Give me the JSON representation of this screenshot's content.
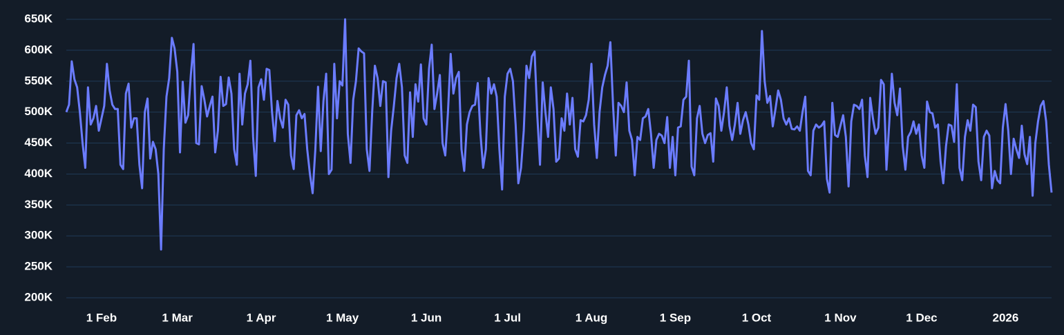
{
  "chart_data": {
    "type": "line",
    "categories": [
      "19 Jan",
      "20 Jan",
      "21 Jan",
      "22 Jan",
      "23 Jan",
      "24 Jan",
      "25 Jan",
      "26 Jan",
      "27 Jan",
      "28 Jan",
      "29 Jan",
      "30 Jan",
      "31 Jan",
      "1 Feb",
      "2 Feb",
      "3 Feb",
      "4 Feb",
      "5 Feb",
      "6 Feb",
      "7 Feb",
      "8 Feb",
      "9 Feb",
      "10 Feb",
      "11 Feb",
      "12 Feb",
      "13 Feb",
      "14 Feb",
      "15 Feb",
      "16 Feb",
      "17 Feb",
      "18 Feb",
      "19 Feb",
      "20 Feb",
      "21 Feb",
      "22 Feb",
      "23 Feb",
      "24 Feb",
      "25 Feb",
      "26 Feb",
      "27 Feb",
      "28 Feb",
      "1 Mar",
      "2 Mar",
      "3 Mar",
      "4 Mar",
      "5 Mar",
      "6 Mar",
      "7 Mar",
      "8 Mar",
      "9 Mar",
      "10 Mar",
      "11 Mar",
      "12 Mar",
      "13 Mar",
      "14 Mar",
      "15 Mar",
      "16 Mar",
      "17 Mar",
      "18 Mar",
      "19 Mar",
      "20 Mar",
      "21 Mar",
      "22 Mar",
      "23 Mar",
      "24 Mar",
      "25 Mar",
      "26 Mar",
      "27 Mar",
      "28 Mar",
      "29 Mar",
      "30 Mar",
      "31 Mar",
      "1 Apr",
      "2 Apr",
      "3 Apr",
      "4 Apr",
      "5 Apr",
      "6 Apr",
      "7 Apr",
      "8 Apr",
      "9 Apr",
      "10 Apr",
      "11 Apr",
      "12 Apr",
      "13 Apr",
      "14 Apr",
      "15 Apr",
      "16 Apr",
      "17 Apr",
      "18 Apr",
      "19 Apr",
      "20 Apr",
      "21 Apr",
      "22 Apr",
      "23 Apr",
      "24 Apr",
      "25 Apr",
      "26 Apr",
      "27 Apr",
      "28 Apr",
      "29 Apr",
      "30 Apr",
      "1 May",
      "2 May",
      "3 May",
      "4 May",
      "5 May",
      "6 May",
      "7 May",
      "8 May",
      "9 May",
      "10 May",
      "11 May",
      "12 May",
      "13 May",
      "14 May",
      "15 May",
      "16 May",
      "17 May",
      "18 May",
      "19 May",
      "20 May",
      "21 May",
      "22 May",
      "23 May",
      "24 May",
      "25 May",
      "26 May",
      "27 May",
      "28 May",
      "29 May",
      "30 May",
      "31 May",
      "1 Jun",
      "2 Jun",
      "3 Jun",
      "4 Jun",
      "5 Jun",
      "6 Jun",
      "7 Jun",
      "8 Jun",
      "9 Jun",
      "10 Jun",
      "11 Jun",
      "12 Jun",
      "13 Jun",
      "14 Jun",
      "15 Jun",
      "16 Jun",
      "17 Jun",
      "18 Jun",
      "19 Jun",
      "20 Jun",
      "21 Jun",
      "22 Jun",
      "23 Jun",
      "24 Jun",
      "25 Jun",
      "26 Jun",
      "27 Jun",
      "28 Jun",
      "29 Jun",
      "30 Jun",
      "1 Jul",
      "2 Jul",
      "3 Jul",
      "4 Jul",
      "5 Jul",
      "6 Jul",
      "7 Jul",
      "8 Jul",
      "9 Jul",
      "10 Jul",
      "11 Jul",
      "12 Jul",
      "13 Jul",
      "14 Jul",
      "15 Jul",
      "16 Jul",
      "17 Jul",
      "18 Jul",
      "19 Jul",
      "20 Jul",
      "21 Jul",
      "22 Jul",
      "23 Jul",
      "24 Jul",
      "25 Jul",
      "26 Jul",
      "27 Jul",
      "28 Jul",
      "29 Jul",
      "30 Jul",
      "31 Jul",
      "1 Aug",
      "2 Aug",
      "3 Aug",
      "4 Aug",
      "5 Aug",
      "6 Aug",
      "7 Aug",
      "8 Aug",
      "9 Aug",
      "10 Aug",
      "11 Aug",
      "12 Aug",
      "13 Aug",
      "14 Aug",
      "15 Aug",
      "16 Aug",
      "17 Aug",
      "18 Aug",
      "19 Aug",
      "20 Aug",
      "21 Aug",
      "22 Aug",
      "23 Aug",
      "24 Aug",
      "25 Aug",
      "26 Aug",
      "27 Aug",
      "28 Aug",
      "29 Aug",
      "30 Aug",
      "31 Aug",
      "1 Sep",
      "2 Sep",
      "3 Sep",
      "4 Sep",
      "5 Sep",
      "6 Sep",
      "7 Sep",
      "8 Sep",
      "9 Sep",
      "10 Sep",
      "11 Sep",
      "12 Sep",
      "13 Sep",
      "14 Sep",
      "15 Sep",
      "16 Sep",
      "17 Sep",
      "18 Sep",
      "19 Sep",
      "20 Sep",
      "21 Sep",
      "22 Sep",
      "23 Sep",
      "24 Sep",
      "25 Sep",
      "26 Sep",
      "27 Sep",
      "28 Sep",
      "29 Sep",
      "30 Sep",
      "1 Oct",
      "2 Oct",
      "3 Oct",
      "4 Oct",
      "5 Oct",
      "6 Oct",
      "7 Oct",
      "8 Oct",
      "9 Oct",
      "10 Oct",
      "11 Oct",
      "12 Oct",
      "13 Oct",
      "14 Oct",
      "15 Oct",
      "16 Oct",
      "17 Oct",
      "18 Oct",
      "19 Oct",
      "20 Oct",
      "21 Oct",
      "22 Oct",
      "23 Oct",
      "24 Oct",
      "25 Oct",
      "26 Oct",
      "27 Oct",
      "28 Oct",
      "29 Oct",
      "30 Oct",
      "31 Oct",
      "1 Nov",
      "2 Nov",
      "3 Nov",
      "4 Nov",
      "5 Nov",
      "6 Nov",
      "7 Nov",
      "8 Nov",
      "9 Nov",
      "10 Nov",
      "11 Nov",
      "12 Nov",
      "13 Nov",
      "14 Nov",
      "15 Nov",
      "16 Nov",
      "17 Nov",
      "18 Nov",
      "19 Nov",
      "20 Nov",
      "21 Nov",
      "22 Nov",
      "23 Nov",
      "24 Nov",
      "25 Nov",
      "26 Nov",
      "27 Nov",
      "28 Nov",
      "29 Nov",
      "30 Nov",
      "1 Dec",
      "2 Dec",
      "3 Dec",
      "4 Dec",
      "5 Dec",
      "6 Dec",
      "7 Dec",
      "8 Dec",
      "9 Dec",
      "10 Dec",
      "11 Dec",
      "12 Dec",
      "13 Dec",
      "14 Dec",
      "15 Dec",
      "16 Dec",
      "17 Dec",
      "18 Dec",
      "19 Dec",
      "20 Dec",
      "21 Dec",
      "22 Dec",
      "23 Dec",
      "24 Dec",
      "25 Dec",
      "26 Dec",
      "27 Dec",
      "28 Dec",
      "29 Dec",
      "30 Dec",
      "31 Dec",
      "1 Jan",
      "2 Jan",
      "3 Jan",
      "4 Jan",
      "5 Jan",
      "6 Jan",
      "7 Jan",
      "8 Jan",
      "9 Jan",
      "10 Jan",
      "11 Jan",
      "12 Jan",
      "13 Jan",
      "14 Jan",
      "15 Jan",
      "16 Jan",
      "17 Jan",
      "18 Jan"
    ],
    "series": [
      {
        "color": "#6b7cff",
        "values": [
          500000,
          512000,
          582000,
          553000,
          540000,
          500000,
          450000,
          410000,
          540000,
          480000,
          490000,
          510000,
          470000,
          490000,
          510000,
          578000,
          535000,
          512000,
          505000,
          505000,
          415000,
          408000,
          530000,
          546000,
          475000,
          490000,
          490000,
          415000,
          377000,
          500000,
          522000,
          425000,
          452000,
          440000,
          400000,
          278000,
          440000,
          525000,
          555000,
          620000,
          603000,
          565000,
          435000,
          549000,
          483000,
          495000,
          560000,
          610000,
          450000,
          448000,
          542000,
          520000,
          493000,
          510000,
          525000,
          435000,
          470000,
          557000,
          510000,
          513000,
          556000,
          530000,
          440000,
          415000,
          562000,
          480000,
          530000,
          545000,
          583000,
          460000,
          397000,
          540000,
          553000,
          520000,
          570000,
          568000,
          500000,
          453000,
          518000,
          490000,
          475000,
          520000,
          512000,
          430000,
          408000,
          495000,
          503000,
          490000,
          497000,
          440000,
          400000,
          369000,
          440000,
          541000,
          437000,
          518000,
          562000,
          400000,
          407000,
          578000,
          490000,
          550000,
          543000,
          650000,
          465000,
          418000,
          520000,
          550000,
          603000,
          598000,
          595000,
          440000,
          405000,
          500000,
          575000,
          555000,
          510000,
          550000,
          548000,
          395000,
          470000,
          510000,
          555000,
          578000,
          540000,
          430000,
          418000,
          532000,
          460000,
          545000,
          517000,
          577000,
          490000,
          480000,
          570000,
          609000,
          505000,
          530000,
          560000,
          450000,
          430000,
          500000,
          594000,
          530000,
          555000,
          565000,
          440000,
          405000,
          480000,
          500000,
          510000,
          512000,
          547000,
          465000,
          410000,
          440000,
          555000,
          530000,
          545000,
          525000,
          440000,
          375000,
          525000,
          562000,
          570000,
          550000,
          480000,
          385000,
          410000,
          470000,
          575000,
          555000,
          590000,
          598000,
          495000,
          415000,
          548000,
          500000,
          460000,
          540000,
          505000,
          420000,
          425000,
          490000,
          470000,
          530000,
          480000,
          523000,
          440000,
          428000,
          487000,
          485000,
          495000,
          520000,
          578000,
          480000,
          426000,
          500000,
          540000,
          560000,
          575000,
          613000,
          510000,
          430000,
          515000,
          510000,
          500000,
          548000,
          470000,
          455000,
          398000,
          460000,
          455000,
          490000,
          493000,
          505000,
          465000,
          410000,
          455000,
          465000,
          462000,
          450000,
          492000,
          410000,
          460000,
          398000,
          475000,
          477000,
          520000,
          525000,
          583000,
          412000,
          398000,
          490000,
          510000,
          465000,
          450000,
          463000,
          466000,
          420000,
          522000,
          510000,
          470000,
          500000,
          540000,
          478000,
          455000,
          480000,
          515000,
          465000,
          487000,
          500000,
          480000,
          450000,
          440000,
          527000,
          520000,
          631000,
          550000,
          515000,
          526000,
          477000,
          505000,
          535000,
          520000,
          490000,
          480000,
          490000,
          473000,
          472000,
          477000,
          470000,
          500000,
          525000,
          405000,
          398000,
          470000,
          480000,
          475000,
          478000,
          485000,
          392000,
          370000,
          515000,
          463000,
          460000,
          478000,
          495000,
          460000,
          380000,
          485000,
          512000,
          510000,
          505000,
          520000,
          430000,
          395000,
          523000,
          490000,
          465000,
          475000,
          552000,
          545000,
          407000,
          480000,
          562000,
          515000,
          495000,
          538000,
          445000,
          407000,
          460000,
          468000,
          485000,
          465000,
          480000,
          430000,
          410000,
          517000,
          500000,
          498000,
          475000,
          480000,
          420000,
          385000,
          445000,
          480000,
          478000,
          452000,
          545000,
          410000,
          390000,
          460000,
          487000,
          470000,
          512000,
          508000,
          420000,
          390000,
          460000,
          470000,
          462000,
          377000,
          405000,
          390000,
          385000,
          475000,
          513000,
          470000,
          400000,
          457000,
          440000,
          426000,
          478000,
          432000,
          416000,
          460000,
          365000,
          450000,
          485000,
          510000,
          518000,
          485000,
          415000,
          370000
        ]
      }
    ],
    "ylim": [
      200000,
      650000
    ],
    "yticks": [
      {
        "value": 200000,
        "label": "200K"
      },
      {
        "value": 250000,
        "label": "250K"
      },
      {
        "value": 300000,
        "label": "300K"
      },
      {
        "value": 350000,
        "label": "350K"
      },
      {
        "value": 400000,
        "label": "400K"
      },
      {
        "value": 450000,
        "label": "450K"
      },
      {
        "value": 500000,
        "label": "500K"
      },
      {
        "value": 550000,
        "label": "550K"
      },
      {
        "value": 600000,
        "label": "600K"
      },
      {
        "value": 650000,
        "label": "650K"
      }
    ],
    "xticks": [
      "1 Feb",
      "1 Mar",
      "1 Apr",
      "1 May",
      "1 Jun",
      "1 Jul",
      "1 Aug",
      "1 Sep",
      "1 Oct",
      "1 Nov",
      "1 Dec",
      {
        "value": "1 Jan",
        "label": "2026"
      }
    ],
    "grid": true
  }
}
